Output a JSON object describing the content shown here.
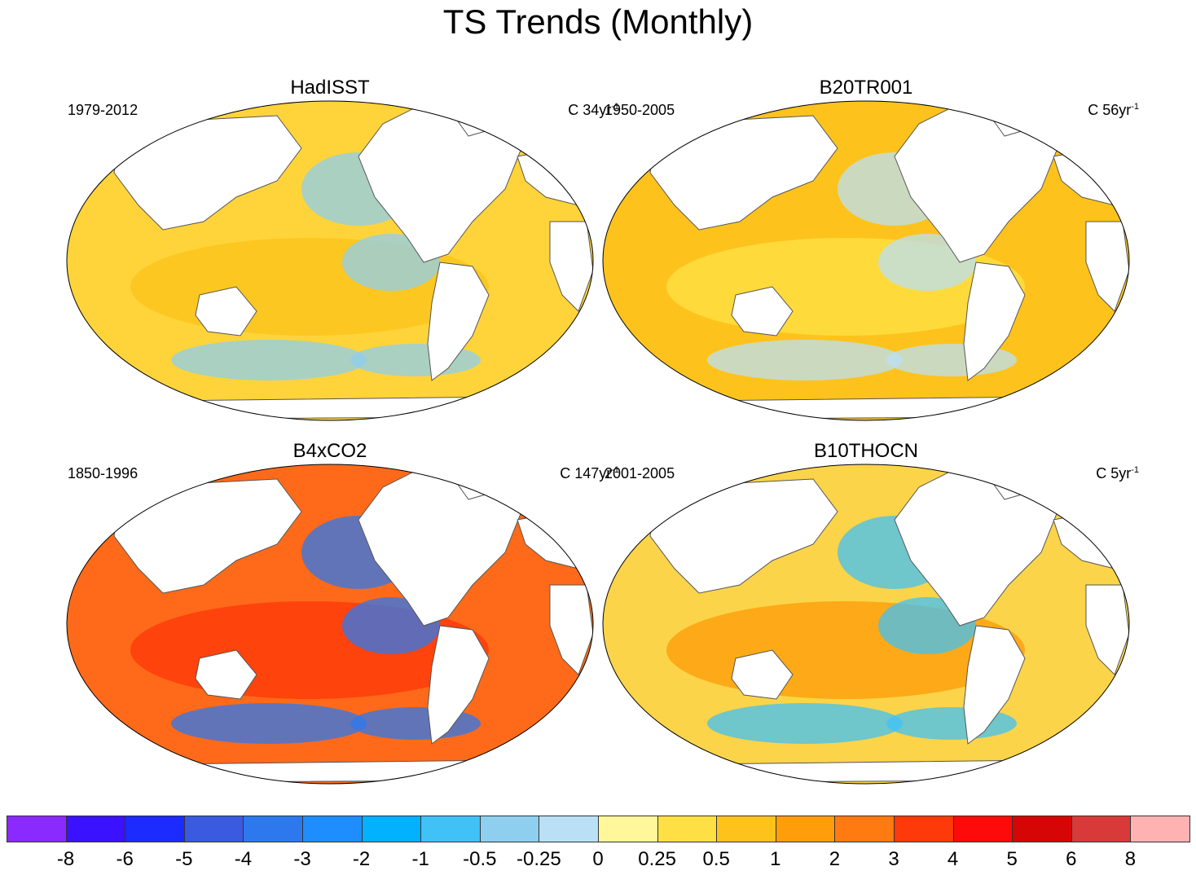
{
  "title": "TS Trends (Monthly)",
  "panels": [
    {
      "name": "HadISST",
      "period": "1979-2012",
      "units_prefix": "C 34yr",
      "units_exp": "-1",
      "ocean_color": "#ffd43a"
    },
    {
      "name": "B20TR001",
      "period": "1950-2005",
      "units_prefix": "C 56yr",
      "units_exp": "-1",
      "ocean_color": "#fdc31c"
    },
    {
      "name": "B4xCO2",
      "period": "1850-1996",
      "units_prefix": "C 147yr",
      "units_exp": "-1",
      "ocean_color": "#ff6a1a"
    },
    {
      "name": "B10THOCN",
      "period": "2001-2005",
      "units_prefix": "C 5yr",
      "units_exp": "-1",
      "ocean_color": "#fbd44a"
    }
  ],
  "colorbar": {
    "colors": [
      "#8b2aff",
      "#3a12ff",
      "#1c2bff",
      "#3a5ae0",
      "#2e78ee",
      "#1e8eff",
      "#03b2ff",
      "#40c2f7",
      "#8ecff0",
      "#bae0f5",
      "#fff79a",
      "#ffe044",
      "#fdc31c",
      "#ff9e0a",
      "#ff7a10",
      "#ff3a0a",
      "#ff0a0a",
      "#d60606",
      "#d83a3a",
      "#ffb2b2"
    ],
    "labels": [
      "-8",
      "-6",
      "-5",
      "-4",
      "-3",
      "-2",
      "-1",
      "-0.5",
      "-0.25",
      "0",
      "0.25",
      "0.5",
      "1",
      "2",
      "3",
      "4",
      "5",
      "6",
      "8"
    ]
  }
}
